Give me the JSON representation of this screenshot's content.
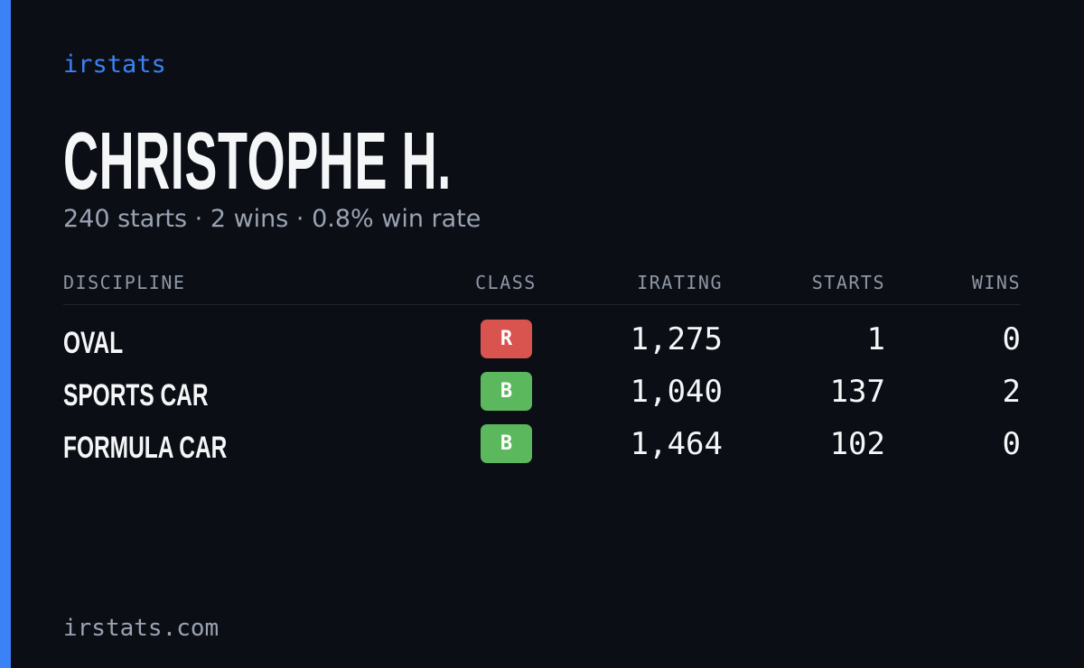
{
  "brand": "irstats",
  "name": "CHRISTOPHE H.",
  "subtitle": "240 starts · 2 wins · 0.8% win rate",
  "table": {
    "header": [
      "DISCIPLINE",
      "CLASS",
      "IRATING",
      "STARTS",
      "WINS"
    ],
    "rows": [
      [
        "OVAL",
        "R",
        "1,275",
        "1",
        "0"
      ],
      [
        "SPORTS CAR",
        "B",
        "1,040",
        "137",
        "2"
      ],
      [
        "FORMULA CAR",
        "B",
        "1,464",
        "102",
        "0"
      ]
    ],
    "class_colors": {
      "R": "#d9534f",
      "B": "#5cb85c"
    }
  },
  "footer": "irstats.com"
}
